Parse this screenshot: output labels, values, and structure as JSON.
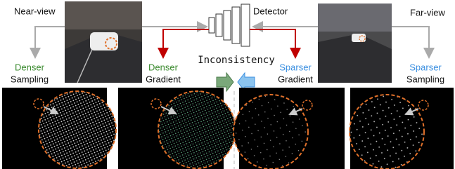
{
  "views": {
    "near": "Near-view",
    "far": "Far-view"
  },
  "detector": "Detector",
  "inconsistency": "Inconsistency",
  "left_sampling": {
    "emph": "Denser",
    "label": "Sampling"
  },
  "left_gradient": {
    "emph": "Denser",
    "label": "Gradient"
  },
  "right_gradient": {
    "emph": "Sparser",
    "label": "Gradient"
  },
  "right_sampling": {
    "emph": "Sparser",
    "label": "Sampling"
  }
}
